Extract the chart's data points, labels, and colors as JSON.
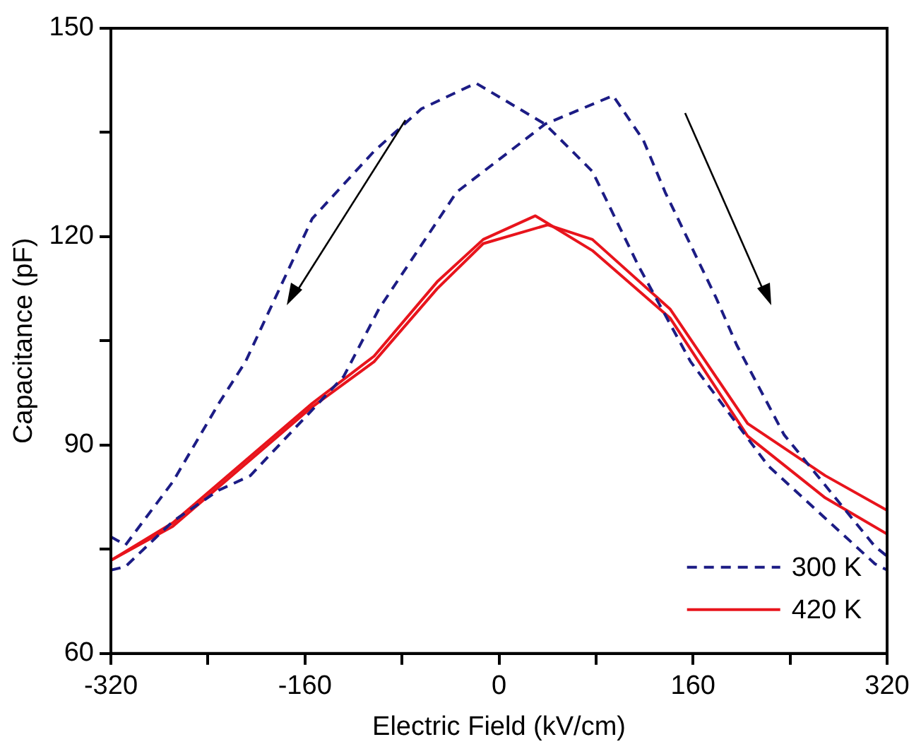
{
  "chart_data": {
    "type": "line",
    "xlabel": "Electric Field (kV/cm)",
    "ylabel": "Capacitance (pF)",
    "xlim": [
      -320,
      320
    ],
    "xticks": [
      -320,
      {
        "value": -240,
        "label": null
      },
      -160,
      {
        "value": -80,
        "label": null
      },
      0,
      {
        "value": 80,
        "label": null
      },
      160,
      {
        "value": 240,
        "label": null
      },
      320
    ],
    "ylim": [
      60,
      150
    ],
    "yticks": [
      60,
      {
        "value": 75,
        "label": null
      },
      90,
      {
        "value": 105,
        "label": null
      },
      120,
      {
        "value": 135,
        "label": null
      },
      150
    ],
    "grid": false,
    "legend": "bottom right",
    "marker": "none",
    "series": [
      {
        "name": "300 K",
        "color": "#1c1c85",
        "line_style": "dashed",
        "x": [
          -320,
          -308,
          -269,
          -231,
          -205,
          -128,
          -99,
          -35,
          38,
          94,
          119,
          137,
          179,
          196,
          235,
          310,
          320
        ],
        "values": [
          72,
          72.5,
          79,
          83.5,
          85.6,
          99.9,
          109.6,
          126.4,
          136.2,
          140.3,
          133.9,
          126.4,
          111.2,
          104.4,
          91.5,
          75.4,
          74
        ]
      },
      {
        "color": "#1c1c85",
        "line_style": "dashed",
        "x": [
          -320,
          -308,
          -269,
          -231,
          -209,
          -154,
          -103,
          -64,
          -19,
          38,
          77,
          115,
          158,
          222,
          310,
          320
        ],
        "values": [
          76.8,
          75.6,
          84.7,
          96,
          102,
          122.6,
          132.3,
          138.4,
          142.1,
          136.2,
          129.4,
          115.8,
          102,
          87,
          72.9,
          72
        ]
      },
      {
        "name": "420 K",
        "color": "#e8141c",
        "line_style": "solid",
        "x": [
          -320,
          -269,
          -154,
          -103,
          -51,
          -13,
          30,
          77,
          141,
          205,
          269,
          320
        ],
        "values": [
          73.4,
          78.8,
          96,
          102.8,
          113.5,
          119.6,
          123,
          118,
          108.3,
          91.3,
          82.4,
          77.2
        ]
      },
      {
        "color": "#e8141c",
        "line_style": "solid",
        "x": [
          -320,
          -269,
          -154,
          -103,
          -51,
          -13,
          40,
          77,
          141,
          205,
          269,
          320
        ],
        "values": [
          73.4,
          78.3,
          95.5,
          102,
          112.5,
          119,
          121.7,
          119.6,
          109.6,
          93.1,
          85.6,
          80.6
        ]
      }
    ]
  }
}
